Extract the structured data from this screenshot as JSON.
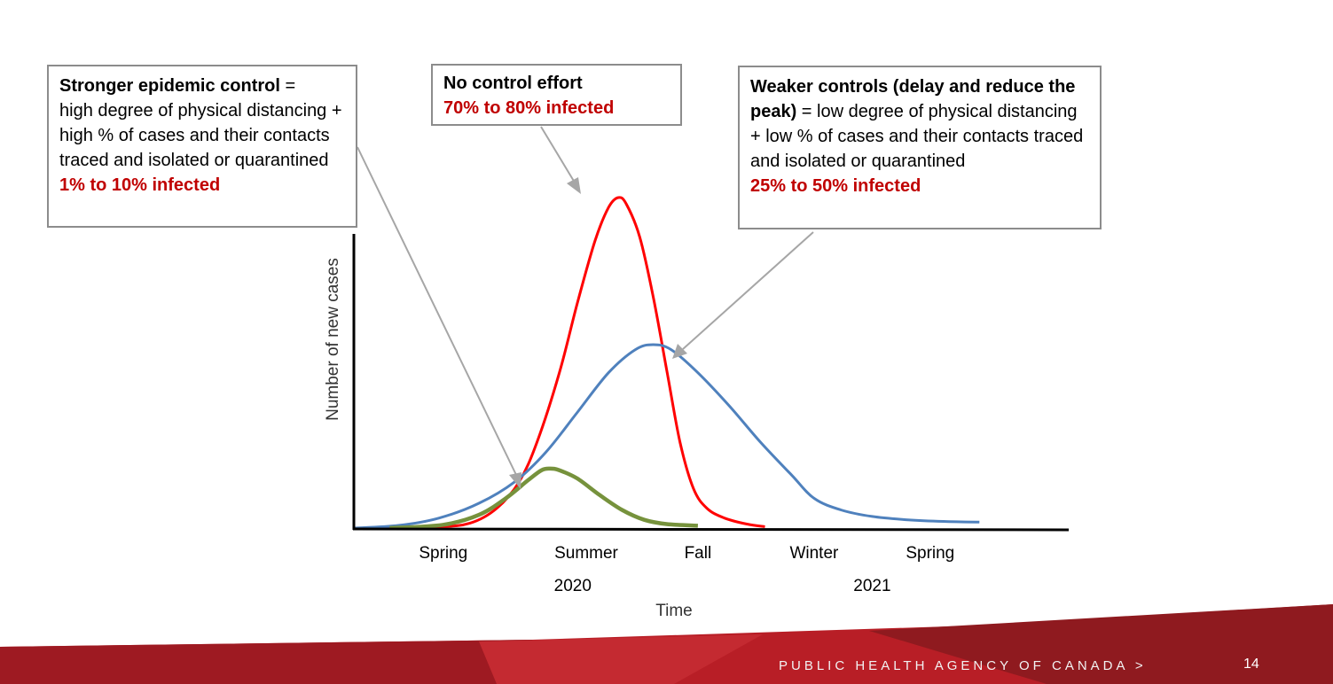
{
  "callouts": {
    "strong": {
      "title": "Stronger epidemic control",
      "eq": " =",
      "body": "high degree of physical distancing + high % of cases and their contacts traced and isolated or quarantined",
      "result": "1% to 10% infected"
    },
    "none": {
      "title": "No control effort",
      "result": "70% to 80% infected"
    },
    "weak": {
      "title": "Weaker controls (delay and reduce the peak)",
      "eq": " = ",
      "body": "low degree of physical distancing + low % of cases and their contacts traced and isolated or quarantined",
      "result": "25% to 50% infected"
    }
  },
  "footer": {
    "agency": "PUBLIC HEALTH AGENCY OF CANADA >",
    "page": "14"
  },
  "chart_data": {
    "type": "line",
    "xlabel": "Time",
    "ylabel": "Number of new cases",
    "season_ticks": [
      {
        "label": "Spring",
        "x": 1.0
      },
      {
        "label": "Summer",
        "x": 2.6
      },
      {
        "label": "Fall",
        "x": 3.85
      },
      {
        "label": "Winter",
        "x": 5.15
      },
      {
        "label": "Spring",
        "x": 6.45
      }
    ],
    "year_ticks": [
      {
        "label": "2020",
        "x": 2.45
      },
      {
        "label": "2021",
        "x": 5.8
      }
    ],
    "xlim": [
      0,
      8.0
    ],
    "ylim": [
      0,
      1.0
    ],
    "grid": false,
    "series": [
      {
        "color": "#ff0000",
        "points": [
          [
            0.0,
            0.0
          ],
          [
            0.9,
            0.003
          ],
          [
            1.3,
            0.015
          ],
          [
            1.6,
            0.06
          ],
          [
            1.85,
            0.14
          ],
          [
            2.05,
            0.26
          ],
          [
            2.3,
            0.47
          ],
          [
            2.5,
            0.68
          ],
          [
            2.7,
            0.87
          ],
          [
            2.85,
            0.97
          ],
          [
            2.96,
            1.0
          ],
          [
            3.05,
            0.98
          ],
          [
            3.2,
            0.88
          ],
          [
            3.35,
            0.7
          ],
          [
            3.5,
            0.48
          ],
          [
            3.65,
            0.26
          ],
          [
            3.8,
            0.12
          ],
          [
            3.95,
            0.06
          ],
          [
            4.15,
            0.03
          ],
          [
            4.4,
            0.012
          ],
          [
            4.6,
            0.004
          ]
        ]
      },
      {
        "color": "#4f81bd",
        "points": [
          [
            0.0,
            0.0
          ],
          [
            0.5,
            0.008
          ],
          [
            0.95,
            0.03
          ],
          [
            1.4,
            0.075
          ],
          [
            1.8,
            0.14
          ],
          [
            2.15,
            0.23
          ],
          [
            2.5,
            0.35
          ],
          [
            2.85,
            0.47
          ],
          [
            3.15,
            0.54
          ],
          [
            3.35,
            0.555
          ],
          [
            3.55,
            0.54
          ],
          [
            3.85,
            0.47
          ],
          [
            4.2,
            0.37
          ],
          [
            4.55,
            0.26
          ],
          [
            4.9,
            0.16
          ],
          [
            5.15,
            0.09
          ],
          [
            5.45,
            0.055
          ],
          [
            5.8,
            0.035
          ],
          [
            6.2,
            0.025
          ],
          [
            6.6,
            0.02
          ],
          [
            7.0,
            0.018
          ]
        ]
      },
      {
        "color": "#76923c",
        "points": [
          [
            0.4,
            0.0
          ],
          [
            1.0,
            0.01
          ],
          [
            1.4,
            0.04
          ],
          [
            1.7,
            0.09
          ],
          [
            1.95,
            0.145
          ],
          [
            2.1,
            0.175
          ],
          [
            2.2,
            0.18
          ],
          [
            2.3,
            0.175
          ],
          [
            2.5,
            0.15
          ],
          [
            2.75,
            0.1
          ],
          [
            3.0,
            0.055
          ],
          [
            3.25,
            0.025
          ],
          [
            3.5,
            0.012
          ],
          [
            3.85,
            0.007
          ]
        ]
      }
    ]
  }
}
